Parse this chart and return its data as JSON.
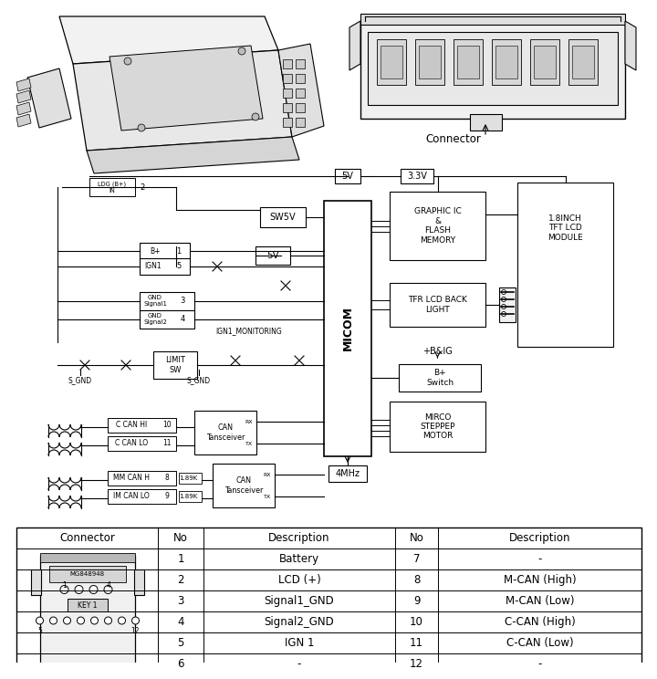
{
  "bg": "#ffffff",
  "connector_label": "Connector",
  "table_headers": [
    "Connector",
    "No",
    "Description",
    "No",
    "Description"
  ],
  "table_rows": [
    [
      "1",
      "Battery",
      "7",
      "-"
    ],
    [
      "2",
      "LCD (+)",
      "8",
      "M-CAN (High)"
    ],
    [
      "3",
      "Signal1_GND",
      "9",
      "M-CAN (Low)"
    ],
    [
      "4",
      "Signal2_GND",
      "10",
      "C-CAN (High)"
    ],
    [
      "5",
      "IGN 1",
      "11",
      "C-CAN (Low)"
    ],
    [
      "6",
      "-",
      "12",
      "-"
    ]
  ],
  "diagram": {
    "micom_label": "MICOM",
    "sw5v": "SW5V",
    "v5": "5V",
    "v33": "3.3V",
    "v5_top": "5V",
    "mhz": "4MHz",
    "graphic_ic": "GRAPHIC IC\n&\nFLASH\nMEMORY",
    "tfr_lcd": "TFR LCD BACK\nLIGHT",
    "lcd_module": "1.8INCH\nTFT LCD\nMODULE",
    "b_switch": "B+\nSwitch",
    "b_ig": "+B&IG",
    "mirco_motor": "MIRCO\nSTEPPEP\nMOTOR",
    "can_tr": "CAN\nTansceiver",
    "ign_monitor": "IGN1_MONITORING",
    "s_gnd": "S_GND",
    "limit_sw": "LIMIT\nSW",
    "c_can_hi": "C CAN HI",
    "c_can_lo": "C CAN LO",
    "mm_can_h": "MM CAN H",
    "im_can_lo": "IM CAN LO",
    "r_18k": "1.89K",
    "b_plus": "B+",
    "ign1_label": "IGN1",
    "gnd_s1": "GND\nSignal1",
    "gnd_s2": "GND\nSignal2",
    "ldg_label": "LDG (B+)\nIN"
  }
}
